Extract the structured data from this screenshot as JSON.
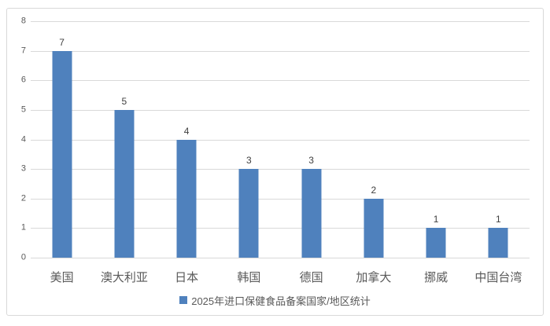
{
  "chart_data": {
    "type": "bar",
    "title": "",
    "xlabel": "",
    "ylabel": "",
    "categories": [
      "美国",
      "澳大利亚",
      "日本",
      "韩国",
      "德国",
      "加拿大",
      "挪威",
      "中国台湾"
    ],
    "values": [
      7,
      5,
      4,
      3,
      3,
      2,
      1,
      1
    ],
    "series_name": "2025年进口保健食品备案国家/地区统计",
    "ylim": [
      0,
      8
    ],
    "yticks": [
      0,
      1,
      2,
      3,
      4,
      5,
      6,
      7,
      8
    ],
    "grid": true,
    "data_labels": true,
    "legend_position": "bottom"
  },
  "legend": {
    "marker": "square",
    "label": "2025年进口保健食品备案国家/地区统计"
  },
  "colors": {
    "bar": "#4f81bd",
    "gridline": "#d9d9d9",
    "frame_border": "#d9d9d9",
    "axis_text": "#595959",
    "data_label": "#404040",
    "background": "#ffffff"
  }
}
